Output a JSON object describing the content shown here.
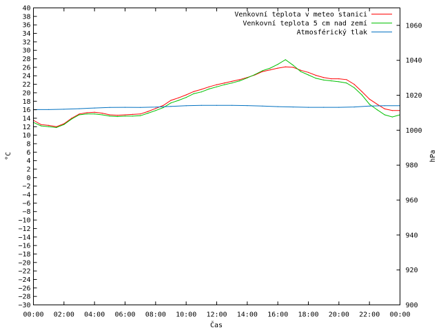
{
  "chart_data": {
    "type": "line",
    "title": "",
    "xlabel": "Čas",
    "ylabel": "°C",
    "y2label": "hPa",
    "xlim": [
      0,
      24
    ],
    "ylim": [
      -30,
      40
    ],
    "y2lim": [
      900,
      1070
    ],
    "grid": false,
    "legend_position": "top-right",
    "x_ticks": [
      0,
      2,
      4,
      6,
      8,
      10,
      12,
      14,
      16,
      18,
      20,
      22,
      24
    ],
    "x_tick_labels": [
      "00:00",
      "02:00",
      "04:00",
      "06:00",
      "08:00",
      "10:00",
      "12:00",
      "14:00",
      "16:00",
      "18:00",
      "20:00",
      "22:00",
      "00:00"
    ],
    "y_ticks": [
      -30,
      -28,
      -26,
      -24,
      -22,
      -20,
      -18,
      -16,
      -14,
      -12,
      -10,
      -8,
      -6,
      -4,
      -2,
      0,
      2,
      4,
      6,
      8,
      10,
      12,
      14,
      16,
      18,
      20,
      22,
      24,
      26,
      28,
      30,
      32,
      34,
      36,
      38,
      40
    ],
    "y_tick_labels": [
      "−30",
      "−28",
      "−26",
      "−24",
      "−22",
      "−20",
      "−18",
      "−16",
      "−14",
      "−12",
      "−10",
      "−8",
      "−6",
      "−4",
      "−2",
      "0",
      "2",
      "4",
      "6",
      "8",
      "10",
      "12",
      "14",
      "16",
      "18",
      "20",
      "22",
      "24",
      "26",
      "28",
      "30",
      "32",
      "34",
      "36",
      "38",
      "40"
    ],
    "y2_ticks": [
      900,
      920,
      940,
      960,
      980,
      1000,
      1020,
      1040,
      1060
    ],
    "y2_tick_labels": [
      "900",
      "920",
      "940",
      "960",
      "980",
      "1000",
      "1020",
      "1040",
      "1060"
    ],
    "series": [
      {
        "name": "Venkovní teplota v meteo stanici",
        "color": "#ff0000",
        "axis": "left",
        "x": [
          0,
          0.5,
          1,
          1.5,
          2,
          2.5,
          3,
          3.5,
          4,
          4.5,
          5,
          5.5,
          6,
          6.5,
          7,
          7.5,
          8,
          8.5,
          9,
          9.5,
          10,
          10.5,
          11,
          11.5,
          12,
          12.5,
          13,
          13.5,
          14,
          14.5,
          15,
          15.5,
          16,
          16.5,
          17,
          17.5,
          18,
          18.5,
          19,
          19.5,
          20,
          20.5,
          21,
          21.5,
          22,
          22.5,
          23,
          23.5,
          24
        ],
        "values": [
          13.5,
          12.5,
          12.3,
          12.0,
          12.7,
          14.0,
          15.0,
          15.3,
          15.4,
          15.2,
          14.8,
          14.7,
          14.8,
          14.9,
          15.0,
          15.6,
          16.3,
          17.0,
          18.2,
          18.8,
          19.5,
          20.3,
          20.8,
          21.4,
          21.9,
          22.3,
          22.7,
          23.1,
          23.6,
          24.2,
          25.0,
          25.4,
          25.8,
          26.1,
          26.0,
          25.3,
          24.8,
          24.1,
          23.6,
          23.3,
          23.3,
          23.1,
          22.0,
          20.3,
          18.5,
          17.3,
          16.2,
          15.8,
          15.8
        ]
      },
      {
        "name": "Venkovní teplota 5 cm nad zemí",
        "color": "#00c000",
        "axis": "left",
        "x": [
          0,
          0.5,
          1,
          1.5,
          2,
          2.5,
          3,
          3.5,
          4,
          4.5,
          5,
          5.5,
          6,
          6.5,
          7,
          7.5,
          8,
          8.5,
          9,
          9.5,
          10,
          10.5,
          11,
          11.5,
          12,
          12.5,
          13,
          13.5,
          14,
          14.5,
          15,
          15.5,
          16,
          16.5,
          17,
          17.5,
          18,
          18.5,
          19,
          19.5,
          20,
          20.5,
          21,
          21.5,
          22,
          22.5,
          23,
          23.5,
          24
        ],
        "values": [
          13.0,
          12.2,
          12.0,
          11.8,
          12.5,
          13.8,
          14.8,
          15.0,
          15.0,
          14.8,
          14.5,
          14.4,
          14.5,
          14.5,
          14.6,
          15.2,
          15.8,
          16.5,
          17.6,
          18.2,
          18.9,
          19.8,
          20.2,
          20.9,
          21.4,
          21.9,
          22.3,
          22.8,
          23.5,
          24.3,
          25.2,
          25.8,
          26.7,
          27.8,
          26.5,
          25.0,
          24.2,
          23.4,
          23.0,
          22.8,
          22.6,
          22.3,
          21.2,
          19.5,
          17.3,
          16.0,
          14.8,
          14.3,
          14.8
        ]
      },
      {
        "name": "Atmosférický tlak",
        "color": "#0070c0",
        "axis": "right",
        "x": [
          0,
          1,
          2,
          3,
          4,
          5,
          6,
          7,
          8,
          9,
          10,
          11,
          12,
          13,
          14,
          15,
          16,
          17,
          18,
          19,
          20,
          21,
          22,
          23,
          24
        ],
        "values": [
          1011.8,
          1011.8,
          1012.0,
          1012.3,
          1012.7,
          1013.0,
          1013.1,
          1013.0,
          1013.2,
          1013.6,
          1014.0,
          1014.2,
          1014.2,
          1014.2,
          1014.1,
          1013.8,
          1013.5,
          1013.3,
          1013.1,
          1013.1,
          1013.1,
          1013.3,
          1013.8,
          1014.0,
          1014.0
        ]
      }
    ]
  }
}
